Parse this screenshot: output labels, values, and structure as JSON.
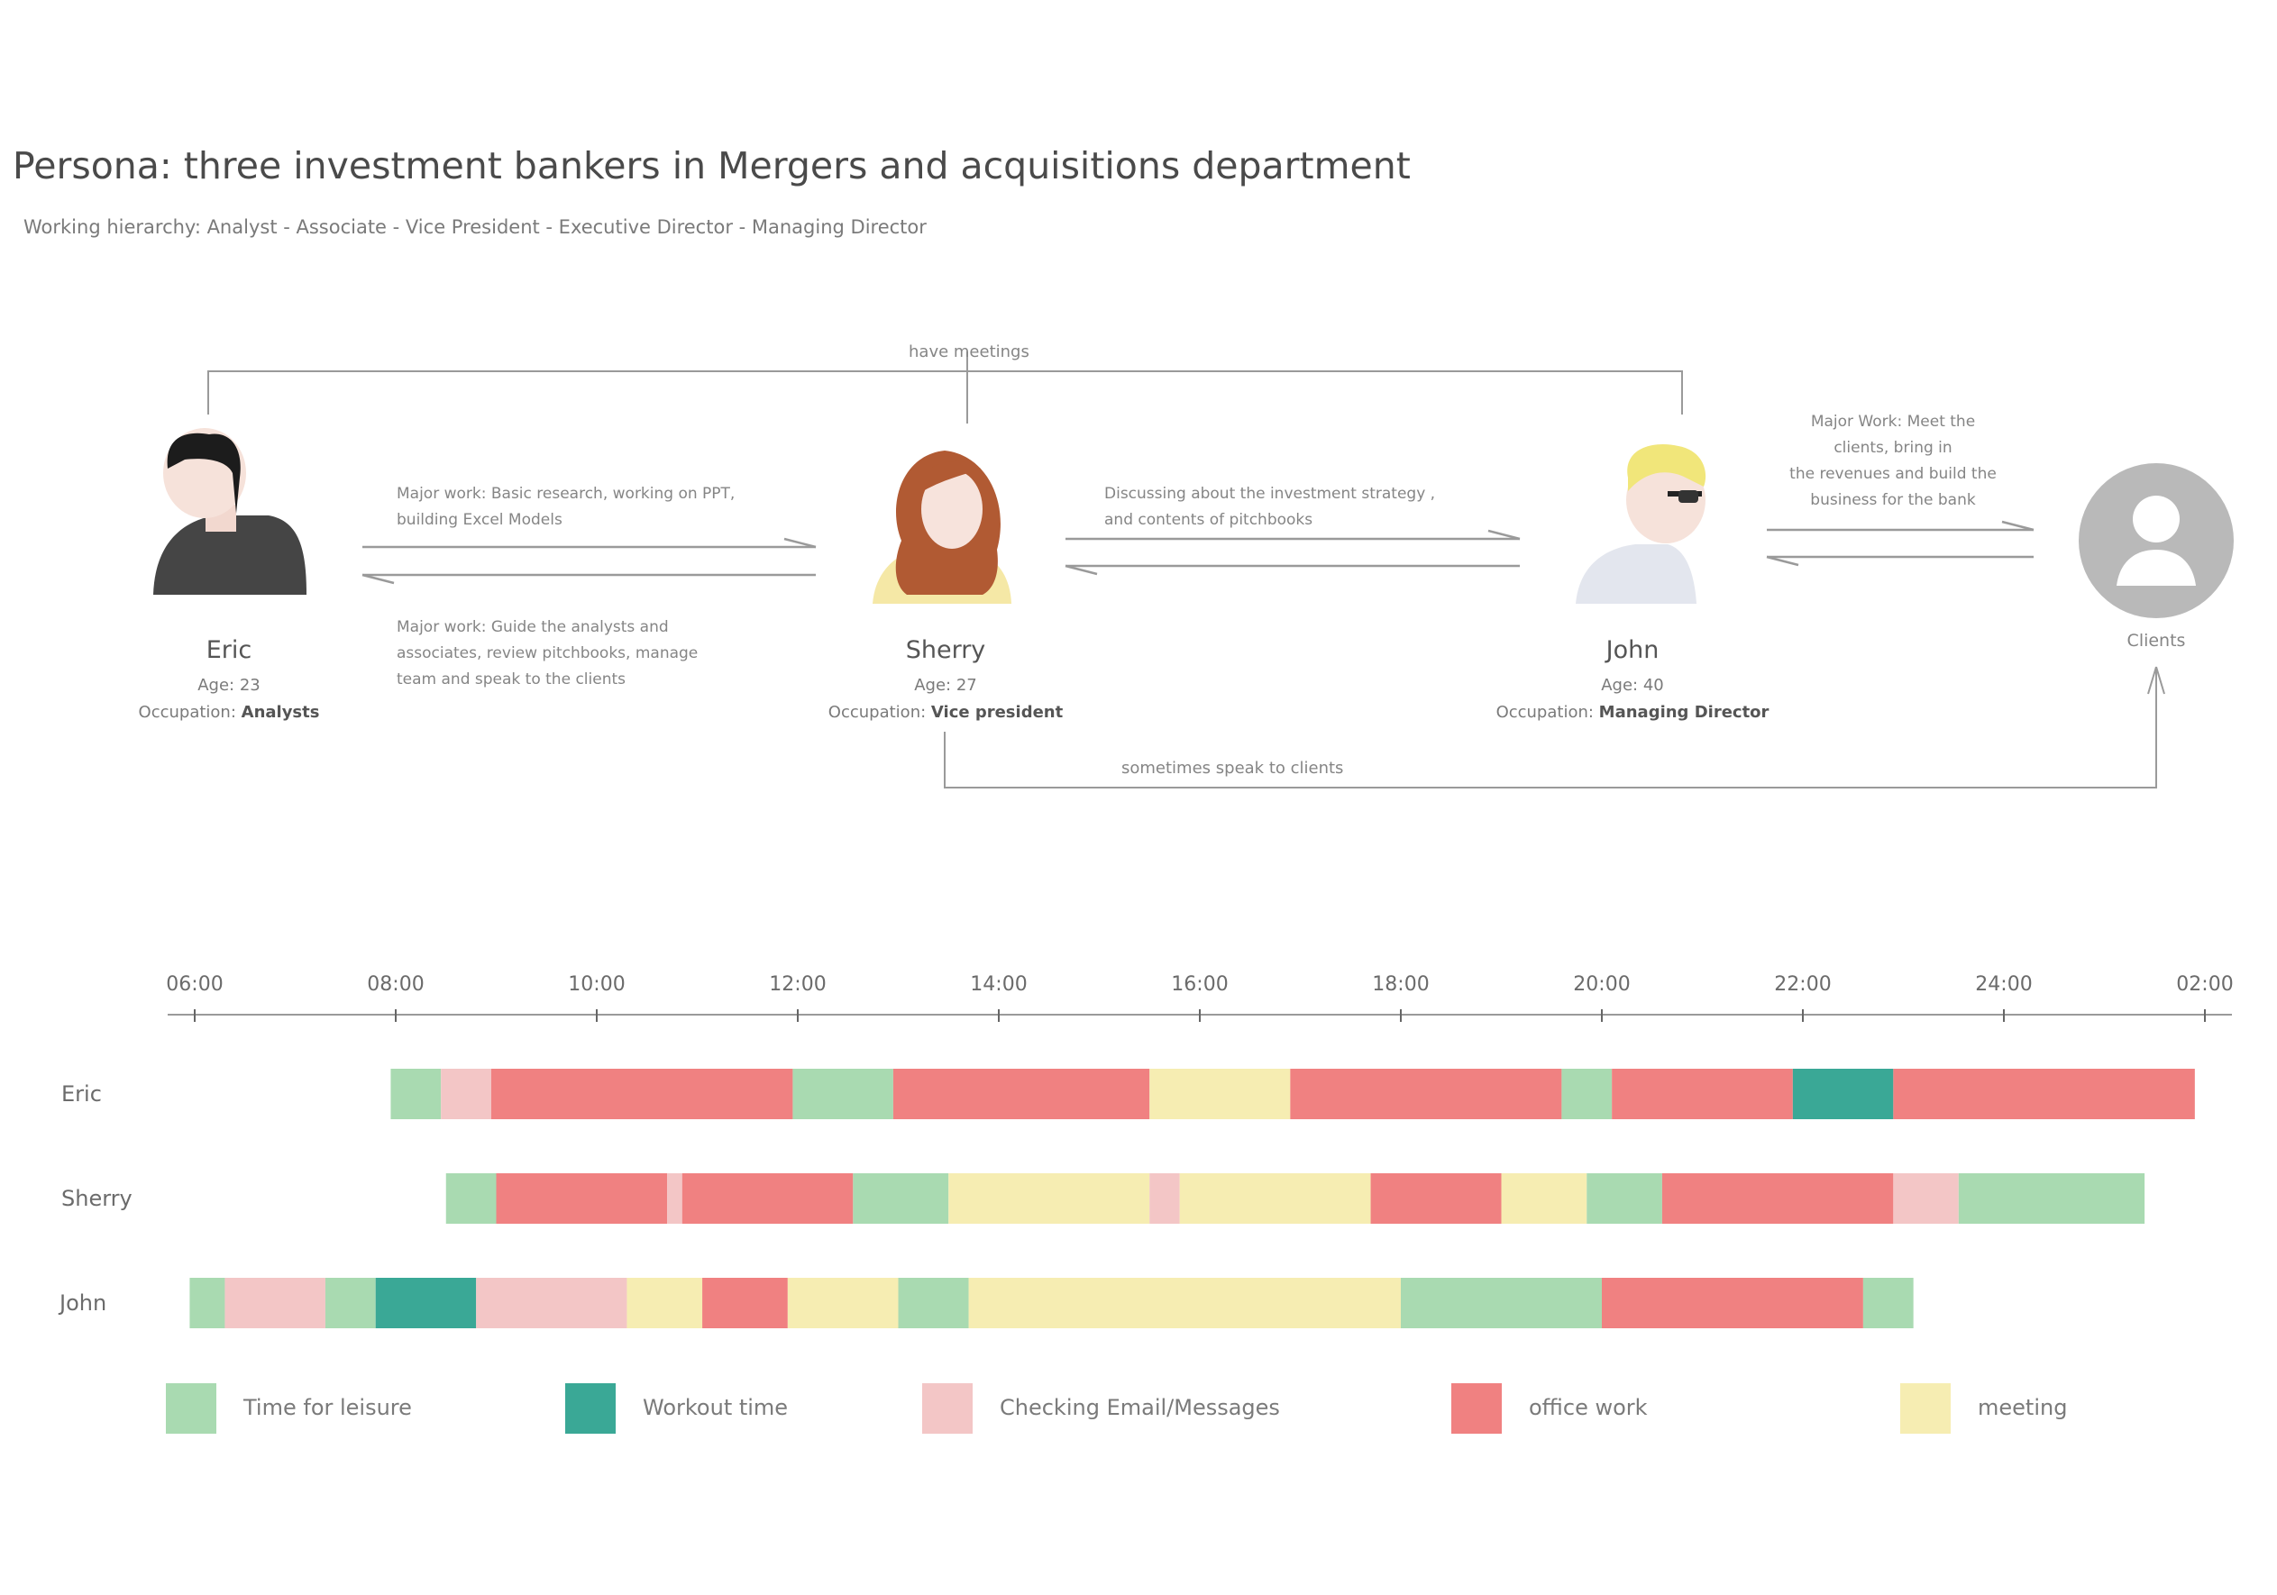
{
  "title": "Persona: three investment bankers in Mergers and acquisitions department",
  "subtitle": "Working hierarchy: Analyst - Associate - Vice President - Executive Director - Managing Director",
  "colors": {
    "leisure": "#a9dab1",
    "workout": "#3aa896",
    "email": "#f3c6c6",
    "office": "#f08181",
    "meeting": "#f6edb2",
    "line": "#9a9a9a"
  },
  "relations": {
    "have_meetings": "have meetings",
    "sometimes_speak": "sometimes speak to clients"
  },
  "personas": [
    {
      "name": "Eric",
      "age_label": "Age: 23",
      "occupation_prefix": "Occupation:",
      "occupation": "Analysts"
    },
    {
      "name": "Sherry",
      "age_label": "Age: 27",
      "occupation_prefix": "Occupation:",
      "occupation": "Vice president"
    },
    {
      "name": "John",
      "age_label": "Age: 40",
      "occupation_prefix": "Occupation:",
      "occupation": "Managing Director"
    }
  ],
  "clients_label": "Clients",
  "notes": {
    "eric_to_sherry": [
      "Major work: Basic research, working on PPT,",
      "building Excel Models"
    ],
    "sherry_to_eric": [
      "Major work: Guide the analysts and",
      "associates, review pitchbooks, manage",
      "team and speak to the clients"
    ],
    "sherry_john": [
      "Discussing about the investment strategy ,",
      "and contents of pitchbooks"
    ],
    "john_clients": [
      "Major Work:  Meet the",
      "clients, bring in",
      "the revenues and build the",
      "business for the bank"
    ]
  },
  "timeline": {
    "hours": [
      6,
      8,
      10,
      12,
      14,
      16,
      18,
      20,
      22,
      24,
      26
    ],
    "tick_labels": [
      "06:00",
      "08:00",
      "10:00",
      "12:00",
      "14:00",
      "16:00",
      "18:00",
      "20:00",
      "22:00",
      "24:00",
      "02:00"
    ],
    "rows": [
      {
        "name": "Eric",
        "segments": [
          {
            "start": 7.95,
            "end": 8.45,
            "activity": "leisure"
          },
          {
            "start": 8.45,
            "end": 8.95,
            "activity": "email"
          },
          {
            "start": 8.95,
            "end": 11.95,
            "activity": "office"
          },
          {
            "start": 11.95,
            "end": 12.95,
            "activity": "leisure"
          },
          {
            "start": 12.95,
            "end": 15.5,
            "activity": "office"
          },
          {
            "start": 15.5,
            "end": 16.9,
            "activity": "meeting"
          },
          {
            "start": 16.9,
            "end": 19.6,
            "activity": "office"
          },
          {
            "start": 19.6,
            "end": 20.1,
            "activity": "leisure"
          },
          {
            "start": 20.1,
            "end": 21.9,
            "activity": "office"
          },
          {
            "start": 21.9,
            "end": 22.9,
            "activity": "workout"
          },
          {
            "start": 22.9,
            "end": 25.9,
            "activity": "office"
          }
        ]
      },
      {
        "name": "Sherry",
        "segments": [
          {
            "start": 8.5,
            "end": 9.0,
            "activity": "leisure"
          },
          {
            "start": 9.0,
            "end": 10.7,
            "activity": "office"
          },
          {
            "start": 10.7,
            "end": 10.85,
            "activity": "email"
          },
          {
            "start": 10.85,
            "end": 12.55,
            "activity": "office"
          },
          {
            "start": 12.55,
            "end": 13.5,
            "activity": "leisure"
          },
          {
            "start": 13.5,
            "end": 15.5,
            "activity": "meeting"
          },
          {
            "start": 15.5,
            "end": 15.8,
            "activity": "email"
          },
          {
            "start": 15.8,
            "end": 17.7,
            "activity": "meeting"
          },
          {
            "start": 17.7,
            "end": 19.0,
            "activity": "office"
          },
          {
            "start": 19.0,
            "end": 19.85,
            "activity": "meeting"
          },
          {
            "start": 19.85,
            "end": 20.6,
            "activity": "leisure"
          },
          {
            "start": 20.6,
            "end": 22.9,
            "activity": "office"
          },
          {
            "start": 22.9,
            "end": 23.55,
            "activity": "email"
          },
          {
            "start": 23.55,
            "end": 25.4,
            "activity": "leisure"
          }
        ]
      },
      {
        "name": "John",
        "segments": [
          {
            "start": 5.95,
            "end": 6.3,
            "activity": "leisure"
          },
          {
            "start": 6.3,
            "end": 7.3,
            "activity": "email"
          },
          {
            "start": 7.3,
            "end": 7.8,
            "activity": "leisure"
          },
          {
            "start": 7.8,
            "end": 8.8,
            "activity": "workout"
          },
          {
            "start": 8.8,
            "end": 10.3,
            "activity": "email"
          },
          {
            "start": 10.3,
            "end": 11.05,
            "activity": "meeting"
          },
          {
            "start": 11.05,
            "end": 11.9,
            "activity": "office"
          },
          {
            "start": 11.9,
            "end": 13.0,
            "activity": "meeting"
          },
          {
            "start": 13.0,
            "end": 13.7,
            "activity": "leisure"
          },
          {
            "start": 13.7,
            "end": 18.0,
            "activity": "meeting"
          },
          {
            "start": 18.0,
            "end": 20.0,
            "activity": "leisure"
          },
          {
            "start": 20.0,
            "end": 22.6,
            "activity": "office"
          },
          {
            "start": 22.6,
            "end": 23.1,
            "activity": "leisure"
          }
        ]
      }
    ]
  },
  "legend": [
    {
      "key": "leisure",
      "label": "Time for leisure"
    },
    {
      "key": "workout",
      "label": "Workout time"
    },
    {
      "key": "email",
      "label": "Checking Email/Messages"
    },
    {
      "key": "office",
      "label": "office work"
    },
    {
      "key": "meeting",
      "label": "meeting"
    }
  ]
}
